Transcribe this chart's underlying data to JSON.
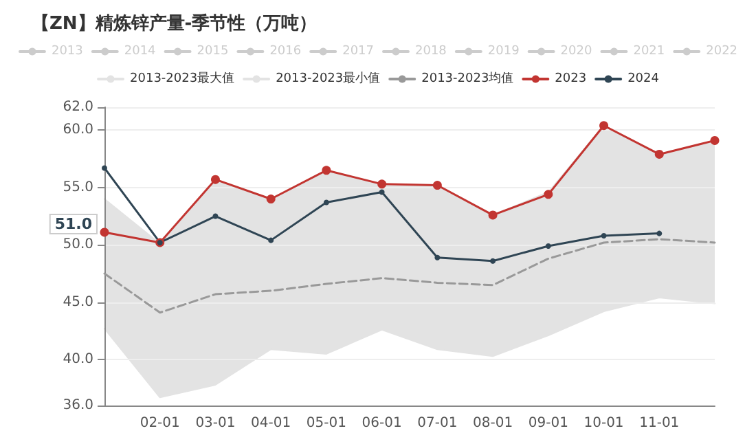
{
  "chart_data": {
    "type": "line",
    "title": "【ZN】精炼锌产量-季节性（万吨）",
    "categories": [
      null,
      "02-01",
      "03-01",
      "04-01",
      "05-01",
      "06-01",
      "07-01",
      "08-01",
      "09-01",
      "10-01",
      "11-01",
      null
    ],
    "ylim": [
      36,
      62
    ],
    "yticks": [
      {
        "value": 36,
        "label": "36.0"
      },
      {
        "value": 40,
        "label": "40.0"
      },
      {
        "value": 45,
        "label": "45.0"
      },
      {
        "value": 50,
        "label": "50.0"
      },
      {
        "value": 55,
        "label": "55.0"
      },
      {
        "value": 60,
        "label": "60.0"
      },
      {
        "value": 62,
        "label": "62.0"
      }
    ],
    "grid": "y",
    "legend": "top",
    "marker": "circle",
    "annotations": [
      "51.0"
    ],
    "series": [
      {
        "name": "2013",
        "color": "#cccccc",
        "values": [
          null,
          null,
          null,
          null,
          null,
          null,
          null,
          null,
          null,
          null,
          null,
          null
        ]
      },
      {
        "name": "2014",
        "color": "#cccccc",
        "values": [
          null,
          null,
          null,
          null,
          null,
          null,
          null,
          null,
          null,
          null,
          null,
          null
        ]
      },
      {
        "name": "2015",
        "color": "#cccccc",
        "values": [
          null,
          null,
          null,
          null,
          null,
          null,
          null,
          null,
          null,
          null,
          null,
          null
        ]
      },
      {
        "name": "2016",
        "color": "#cccccc",
        "values": [
          null,
          null,
          null,
          null,
          null,
          null,
          null,
          null,
          null,
          null,
          null,
          null
        ]
      },
      {
        "name": "2017",
        "color": "#cccccc",
        "values": [
          null,
          null,
          null,
          null,
          null,
          null,
          null,
          null,
          null,
          null,
          null,
          null
        ]
      },
      {
        "name": "2018",
        "color": "#cccccc",
        "values": [
          null,
          null,
          null,
          null,
          null,
          null,
          null,
          null,
          null,
          null,
          null,
          null
        ]
      },
      {
        "name": "2019",
        "color": "#cccccc",
        "values": [
          null,
          null,
          null,
          null,
          null,
          null,
          null,
          null,
          null,
          null,
          null,
          null
        ]
      },
      {
        "name": "2020",
        "color": "#cccccc",
        "values": [
          null,
          null,
          null,
          null,
          null,
          null,
          null,
          null,
          null,
          null,
          null,
          null
        ]
      },
      {
        "name": "2021",
        "color": "#cccccc",
        "values": [
          null,
          null,
          null,
          null,
          null,
          null,
          null,
          null,
          null,
          null,
          null,
          null
        ]
      },
      {
        "name": "2022",
        "color": "#cccccc",
        "values": [
          null,
          null,
          null,
          null,
          null,
          null,
          null,
          null,
          null,
          null,
          null,
          null
        ]
      },
      {
        "name": "2013-2023最大值",
        "type": "area",
        "color": "#e3e3e3",
        "marker": "none",
        "values": [
          54.0,
          50.1,
          55.6,
          54.0,
          56.5,
          55.3,
          55.2,
          52.6,
          54.6,
          60.4,
          57.9,
          59.1
        ]
      },
      {
        "name": "2013-2023最小值",
        "type": "area",
        "color": "#e3e3e3",
        "marker": "none",
        "values": [
          42.7,
          36.7,
          37.8,
          40.9,
          40.5,
          42.6,
          40.9,
          40.3,
          42.1,
          44.2,
          45.4,
          44.9
        ]
      },
      {
        "name": "2013-2023均值",
        "color": "#999999",
        "marker": "none",
        "line_style": "dashed",
        "values": [
          47.5,
          44.1,
          45.7,
          46.0,
          46.6,
          47.1,
          46.7,
          46.5,
          48.8,
          50.2,
          50.5,
          50.2
        ]
      },
      {
        "name": "2023",
        "color": "#c23531",
        "values": [
          51.1,
          50.2,
          55.7,
          54.0,
          56.5,
          55.3,
          55.2,
          52.6,
          54.4,
          60.4,
          57.9,
          59.1
        ]
      },
      {
        "name": "2024",
        "color": "#2f4554",
        "values": [
          56.7,
          50.2,
          52.5,
          50.4,
          53.7,
          54.6,
          48.9,
          48.6,
          49.9,
          50.8,
          51.0,
          null
        ]
      }
    ]
  }
}
